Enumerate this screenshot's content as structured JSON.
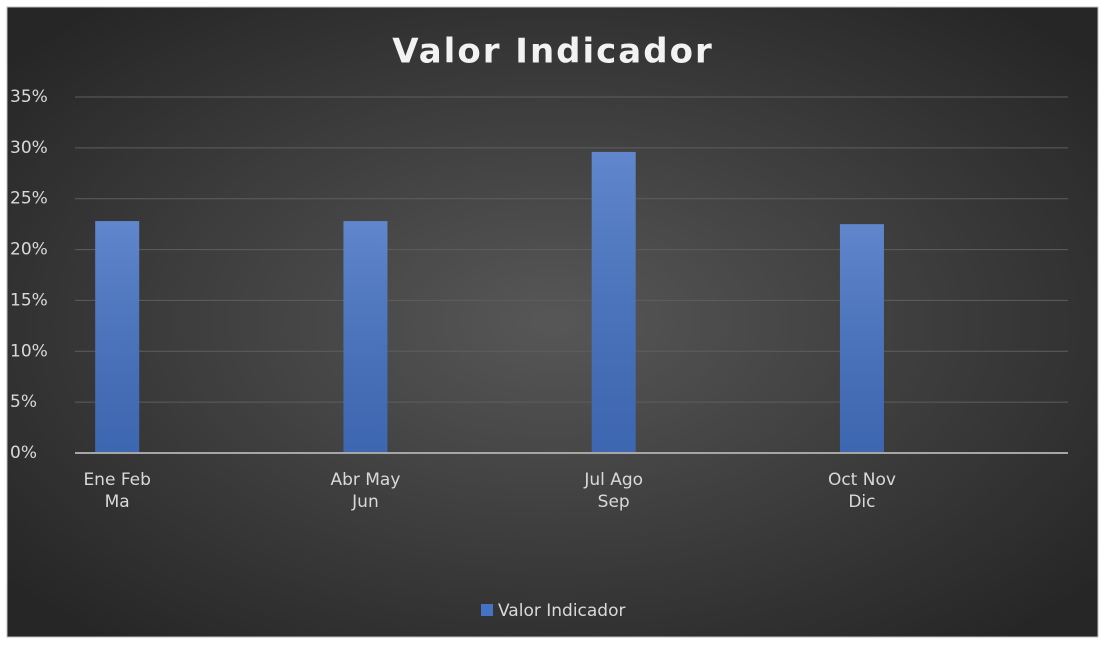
{
  "chart_data": {
    "type": "bar",
    "title": "Valor Indicador",
    "categories": [
      "Ene Feb Ma",
      "Abr May Jun",
      "Jul Ago Sep",
      "Oct Nov Dic"
    ],
    "series": [
      {
        "name": "Valor Indicador",
        "color": "#4472c4",
        "values": [
          22.8,
          22.8,
          29.6,
          22.5
        ]
      }
    ],
    "ylim": [
      0,
      35
    ],
    "yticks": [
      {
        "value": 0,
        "label": "0%"
      },
      {
        "value": 5,
        "label": "5%"
      },
      {
        "value": 10,
        "label": "10%"
      },
      {
        "value": 15,
        "label": "15%"
      },
      {
        "value": 20,
        "label": "20%"
      },
      {
        "value": 25,
        "label": "25%"
      },
      {
        "value": 30,
        "label": "30%"
      },
      {
        "value": 35,
        "label": "35%"
      }
    ],
    "grid": true,
    "legend": "bottom"
  }
}
